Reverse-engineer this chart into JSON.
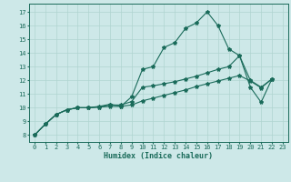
{
  "xlabel": "Humidex (Indice chaleur)",
  "xlim": [
    -0.5,
    23.5
  ],
  "ylim": [
    7.5,
    17.6
  ],
  "xticks": [
    0,
    1,
    2,
    3,
    4,
    5,
    6,
    7,
    8,
    9,
    10,
    11,
    12,
    13,
    14,
    15,
    16,
    17,
    18,
    19,
    20,
    21,
    22,
    23
  ],
  "yticks": [
    8,
    9,
    10,
    11,
    12,
    13,
    14,
    15,
    16,
    17
  ],
  "bg_color": "#cde8e8",
  "line_color": "#1a6b5a",
  "grid_color": "#b0d4d0",
  "line1": {
    "x": [
      0,
      1,
      2,
      3,
      4,
      5,
      6,
      7,
      8,
      9,
      10,
      11,
      12,
      13,
      14,
      15,
      16,
      17,
      18,
      19,
      20,
      21,
      22
    ],
    "y": [
      8.0,
      8.8,
      9.5,
      9.85,
      10.0,
      10.0,
      10.1,
      10.25,
      10.1,
      10.8,
      12.8,
      13.0,
      14.4,
      14.75,
      15.8,
      16.2,
      17.0,
      16.0,
      14.3,
      13.8,
      11.5,
      10.4,
      12.1
    ]
  },
  "line2": {
    "x": [
      0,
      1,
      2,
      3,
      4,
      5,
      6,
      7,
      8,
      9,
      10,
      11,
      12,
      13,
      14,
      15,
      16,
      17,
      18,
      19,
      20,
      21,
      22
    ],
    "y": [
      8.0,
      8.8,
      9.5,
      9.85,
      10.0,
      10.0,
      10.05,
      10.2,
      10.2,
      10.45,
      11.5,
      11.6,
      11.75,
      11.9,
      12.1,
      12.3,
      12.55,
      12.8,
      13.0,
      13.8,
      12.0,
      11.5,
      12.1
    ]
  },
  "line3": {
    "x": [
      0,
      1,
      2,
      3,
      4,
      5,
      6,
      7,
      8,
      9,
      10,
      11,
      12,
      13,
      14,
      15,
      16,
      17,
      18,
      19,
      20,
      21,
      22
    ],
    "y": [
      8.0,
      8.8,
      9.5,
      9.85,
      10.0,
      10.0,
      10.05,
      10.1,
      10.1,
      10.2,
      10.5,
      10.7,
      10.9,
      11.1,
      11.3,
      11.55,
      11.75,
      11.95,
      12.15,
      12.35,
      11.95,
      11.45,
      12.1
    ]
  },
  "font_size_tick": 5.0,
  "font_size_xlabel": 6.0
}
